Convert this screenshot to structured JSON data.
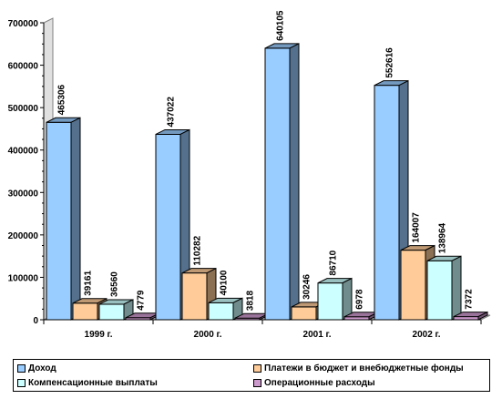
{
  "chart_data": {
    "type": "bar",
    "variant": "3d-clustered-column",
    "categories": [
      "1999 г.",
      "2000 г.",
      "2001 г.",
      "2002 г."
    ],
    "series": [
      {
        "name": "Доход",
        "values": [
          465306,
          437022,
          640105,
          552616
        ],
        "color": "#99ccff"
      },
      {
        "name": "Платежи в бюджет и внебюджетные фонды",
        "values": [
          39161,
          110282,
          30246,
          164007
        ],
        "color": "#ffcc99"
      },
      {
        "name": "Компенсационные выплаты",
        "values": [
          36560,
          40100,
          86710,
          138964
        ],
        "color": "#ccffff"
      },
      {
        "name": "Операционные расходы",
        "values": [
          4779,
          3818,
          6978,
          7372
        ],
        "color": "#cc99cc"
      }
    ],
    "ylim": [
      0,
      700000
    ],
    "yticks": [
      0,
      100000,
      200000,
      300000,
      400000,
      500000,
      600000,
      700000
    ],
    "grid": false,
    "legend_position": "bottom"
  }
}
